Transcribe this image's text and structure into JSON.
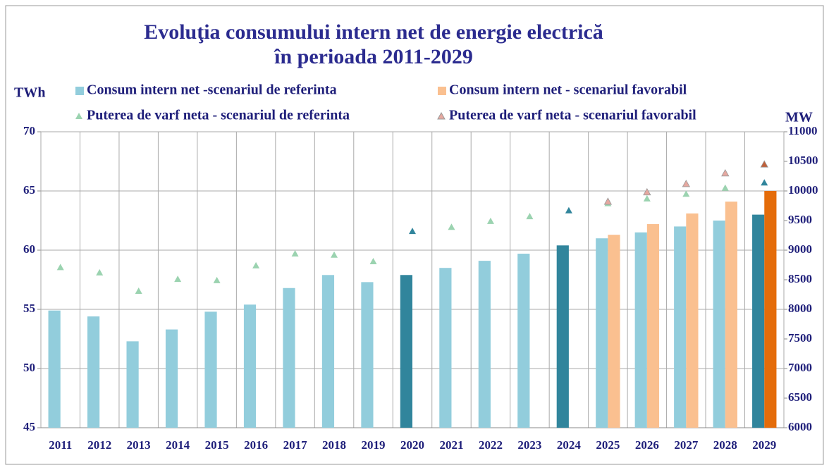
{
  "chart_data": {
    "type": "bar",
    "title": [
      "Evoluţia consumului intern net de energie electrică",
      "în perioada  2011-2029"
    ],
    "y_label": "TWh",
    "y2_label": "MW",
    "categories": [
      "2011",
      "2012",
      "2013",
      "2014",
      "2015",
      "2016",
      "2017",
      "2018",
      "2019",
      "2020",
      "2021",
      "2022",
      "2023",
      "2024",
      "2025",
      "2026",
      "2027",
      "2028",
      "2029"
    ],
    "series": [
      {
        "name": "Consum intern net -scenariul de referinta",
        "style": "bar",
        "axis": "y",
        "color": "#92cddc",
        "colors": [
          "#92cddc",
          "#92cddc",
          "#92cddc",
          "#92cddc",
          "#92cddc",
          "#92cddc",
          "#92cddc",
          "#92cddc",
          "#92cddc",
          "#31859c",
          "#92cddc",
          "#92cddc",
          "#92cddc",
          "#31859c",
          "#92cddc",
          "#92cddc",
          "#92cddc",
          "#92cddc",
          "#31859c"
        ],
        "values": [
          54.9,
          54.4,
          52.3,
          53.3,
          54.8,
          55.4,
          56.8,
          57.9,
          57.3,
          57.9,
          58.5,
          59.1,
          59.7,
          60.4,
          61.0,
          61.5,
          62.0,
          62.5,
          63.0
        ]
      },
      {
        "name": "Consum intern net - scenariul favorabil",
        "style": "bar",
        "axis": "y",
        "color": "#fac090",
        "colors": [
          "#fac090",
          "#fac090",
          "#fac090",
          "#fac090",
          "#fac090",
          "#fac090",
          "#fac090",
          "#fac090",
          "#fac090",
          "#fac090",
          "#fac090",
          "#fac090",
          "#fac090",
          "#fac090",
          "#fac090",
          "#fac090",
          "#fac090",
          "#fac090",
          "#e46c0a"
        ],
        "values": [
          null,
          null,
          null,
          null,
          null,
          null,
          null,
          null,
          null,
          null,
          null,
          null,
          null,
          null,
          61.3,
          62.2,
          63.1,
          64.1,
          65.0
        ]
      },
      {
        "name": "Puterea de varf neta -  scenariul de referinta",
        "style": "triangle",
        "axis": "y2",
        "color": "#9bd3b0",
        "colors": [
          "#9bd3b0",
          "#9bd3b0",
          "#9bd3b0",
          "#9bd3b0",
          "#9bd3b0",
          "#9bd3b0",
          "#9bd3b0",
          "#9bd3b0",
          "#9bd3b0",
          "#31859c",
          "#9bd3b0",
          "#9bd3b0",
          "#9bd3b0",
          "#31859c",
          "#9bd3b0",
          "#9bd3b0",
          "#9bd3b0",
          "#9bd3b0",
          "#31859c"
        ],
        "values": [
          8710,
          8620,
          8310,
          8510,
          8490,
          8740,
          8940,
          8920,
          8810,
          9320,
          9390,
          9490,
          9570,
          9670,
          9790,
          9870,
          9950,
          10050,
          10140
        ]
      },
      {
        "name": "Puterea de varf neta - scenariul favorabil",
        "style": "triangle",
        "axis": "y2",
        "color": "#e6a8a0",
        "colors": [
          "#e6a8a0",
          "#e6a8a0",
          "#e6a8a0",
          "#e6a8a0",
          "#e6a8a0",
          "#e6a8a0",
          "#e6a8a0",
          "#e6a8a0",
          "#e6a8a0",
          "#e6a8a0",
          "#e6a8a0",
          "#e6a8a0",
          "#e6a8a0",
          "#e6a8a0",
          "#e6a8a0",
          "#e6a8a0",
          "#e6a8a0",
          "#e6a8a0",
          "#c0603a"
        ],
        "values": [
          null,
          null,
          null,
          null,
          null,
          null,
          null,
          null,
          null,
          null,
          null,
          null,
          null,
          null,
          9820,
          9980,
          10120,
          10300,
          10450
        ]
      }
    ],
    "ylim": [
      45,
      70
    ],
    "yticks": [
      45,
      50,
      55,
      60,
      65,
      70
    ],
    "y2lim": [
      6000,
      11000
    ],
    "y2ticks": [
      6000,
      6500,
      7000,
      7500,
      8000,
      8500,
      9000,
      9500,
      10000,
      10500,
      11000
    ],
    "grid": true
  }
}
